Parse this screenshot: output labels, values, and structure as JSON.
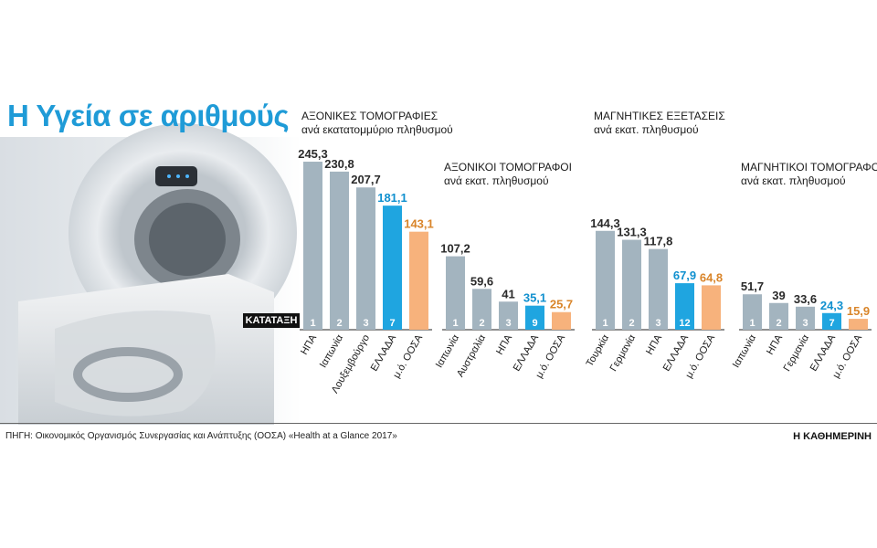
{
  "header": {
    "title": "Η Υγεία σε αριθμούς"
  },
  "rank_label": "ΚΑΤΑΤΑΞΗ",
  "footer": {
    "source": "ΠΗΓΗ: Οικονομικός Οργανισμός Συνεργασίας και Ανάπτυξης (ΟΟΣΑ) «Health at a Glance 2017»",
    "brand": "Η ΚΑΘΗΜΕΡΙΝΗ"
  },
  "colors": {
    "gray": "#a3b4bf",
    "greece": "#1fa5e0",
    "oecd": "#f7b27c",
    "oecd_label": "#d9852a",
    "greece_label": "#1090cf",
    "text": "#1a1a1a"
  },
  "chart_data": [
    {
      "type": "bar",
      "title": "ΑΞΟΝΙΚΕΣ ΤΟΜΟΓΡΑΦΙΕΣ",
      "subtitle": "ανά εκατατομμύριο πληθυσμού",
      "categories": [
        "ΗΠΑ",
        "Ιαπωνία",
        "Λουξεμβούργο",
        "ΕΛΛΑΔΑ",
        "μ.ό. ΟΟΣΑ"
      ],
      "values": [
        245.3,
        230.8,
        207.7,
        181.1,
        143.1
      ],
      "value_labels": [
        "245,3",
        "230,8",
        "207,7",
        "181,1",
        "143,1"
      ],
      "ranks": [
        "1",
        "2",
        "3",
        "7",
        ""
      ],
      "kinds": [
        "gray",
        "gray",
        "gray",
        "greece",
        "oecd"
      ]
    },
    {
      "type": "bar",
      "title": "ΑΞΟΝΙΚΟΙ ΤΟΜΟΓΡΑΦΟΙ",
      "subtitle": "ανά εκατ. πληθυσμού",
      "categories": [
        "Ιαπωνία",
        "Αυστραλία",
        "ΗΠΑ",
        "ΕΛΛΑΔΑ",
        "μ.ό. ΟΟΣΑ"
      ],
      "values": [
        107.2,
        59.6,
        41,
        35.1,
        25.7
      ],
      "value_labels": [
        "107,2",
        "59,6",
        "41",
        "35,1",
        "25,7"
      ],
      "ranks": [
        "1",
        "2",
        "3",
        "9",
        ""
      ],
      "kinds": [
        "gray",
        "gray",
        "gray",
        "greece",
        "oecd"
      ]
    },
    {
      "type": "bar",
      "title": "ΜΑΓΝΗΤΙΚΕΣ ΕΞΕΤΑΣΕΙΣ",
      "subtitle": "ανά εκατ. πληθυσμού",
      "categories": [
        "Τουρκία",
        "Γερμανία",
        "ΗΠΑ",
        "ΕΛΛΑΔΑ",
        "μ.ό. ΟΟΣΑ"
      ],
      "values": [
        144.3,
        131.3,
        117.8,
        67.9,
        64.8
      ],
      "value_labels": [
        "144,3",
        "131,3",
        "117,8",
        "67,9",
        "64,8"
      ],
      "ranks": [
        "1",
        "2",
        "3",
        "12",
        ""
      ],
      "kinds": [
        "gray",
        "gray",
        "gray",
        "greece",
        "oecd"
      ]
    },
    {
      "type": "bar",
      "title": "ΜΑΓΝΗΤΙΚΟΙ ΤΟΜΟΓΡΑΦΟΙ",
      "subtitle": "ανά εκατ. πληθυσμού",
      "categories": [
        "Ιαπωνία",
        "ΗΠΑ",
        "Γερμανία",
        "ΕΛΛΑΔΑ",
        "μ.ό. ΟΟΣΑ"
      ],
      "values": [
        51.7,
        39,
        33.6,
        24.3,
        15.9
      ],
      "value_labels": [
        "51,7",
        "39",
        "33,6",
        "24,3",
        "15,9"
      ],
      "ranks": [
        "1",
        "2",
        "3",
        "7",
        ""
      ],
      "kinds": [
        "gray",
        "gray",
        "gray",
        "greece",
        "oecd"
      ]
    }
  ]
}
